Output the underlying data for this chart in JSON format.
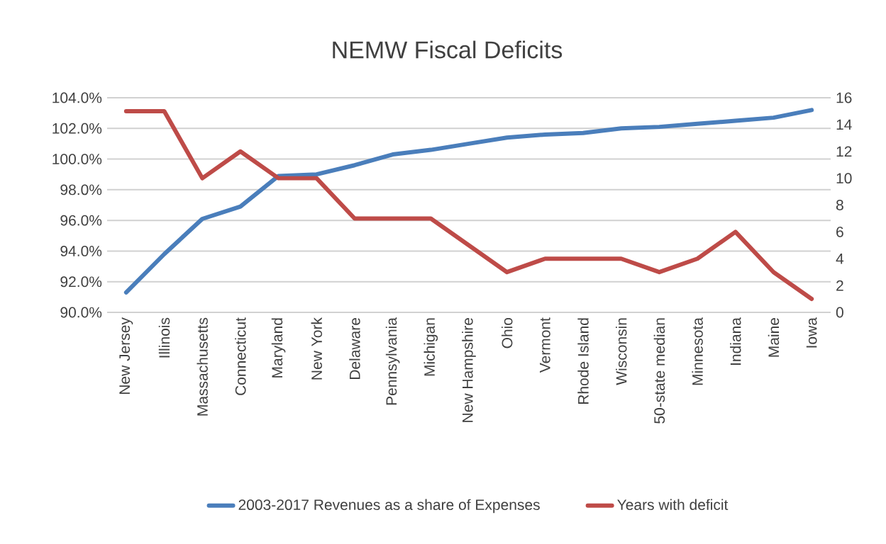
{
  "chart_data": {
    "type": "line",
    "title": "NEMW Fiscal Deficits",
    "categories": [
      "New Jersey",
      "Illinois",
      "Massachusetts",
      "Connecticut",
      "Maryland",
      "New York",
      "Delaware",
      "Pennsylvania",
      "Michigan",
      "New Hampshire",
      "Ohio",
      "Vermont",
      "Rhode Island",
      "Wisconsin",
      "50-state median",
      "Minnesota",
      "Indiana",
      "Maine",
      "Iowa"
    ],
    "series": [
      {
        "name": "2003-2017 Revenues as a share of Expenses",
        "color": "#4a7ebb",
        "values": [
          91.3,
          93.8,
          96.1,
          96.9,
          98.9,
          99.0,
          99.6,
          100.3,
          100.6,
          101.0,
          101.4,
          101.6,
          101.7,
          102.0,
          102.1,
          102.3,
          102.5,
          102.7,
          103.2
        ]
      },
      {
        "name": "Years with deficit",
        "color": "#be4b48",
        "axis": "y2",
        "values": [
          15,
          15,
          10,
          12,
          10,
          10,
          7,
          7,
          7,
          5,
          3,
          4,
          4,
          4,
          3,
          4,
          6,
          3,
          1
        ]
      }
    ],
    "ylim": [
      90,
      104
    ],
    "yticks": [
      {
        "value": 90,
        "label": "90.0%"
      },
      {
        "value": 92,
        "label": "92.0%"
      },
      {
        "value": 94,
        "label": "94.0%"
      },
      {
        "value": 96,
        "label": "96.0%"
      },
      {
        "value": 98,
        "label": "98.0%"
      },
      {
        "value": 100,
        "label": "100.0%"
      },
      {
        "value": 102,
        "label": "102.0%"
      },
      {
        "value": 104,
        "label": "104.0%"
      }
    ],
    "y2lim": [
      0,
      16
    ],
    "y2ticks": [
      0,
      2,
      4,
      6,
      8,
      10,
      12,
      14,
      16
    ],
    "grid": "y",
    "legend": "bottom",
    "marker": "none",
    "line_style": "solid"
  }
}
